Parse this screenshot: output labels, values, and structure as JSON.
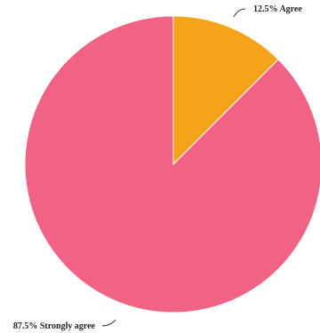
{
  "chart_data": {
    "type": "pie",
    "slices": [
      {
        "label": "Agree",
        "value": 12.5,
        "color": "#f4a31b",
        "display": "12.5% Agree"
      },
      {
        "label": "Strongly agree",
        "value": 87.5,
        "color": "#f06385",
        "display": "87.5% Strongly agree"
      }
    ],
    "start_angle": "12 o'clock",
    "direction": "clockwise",
    "legend": "none"
  }
}
